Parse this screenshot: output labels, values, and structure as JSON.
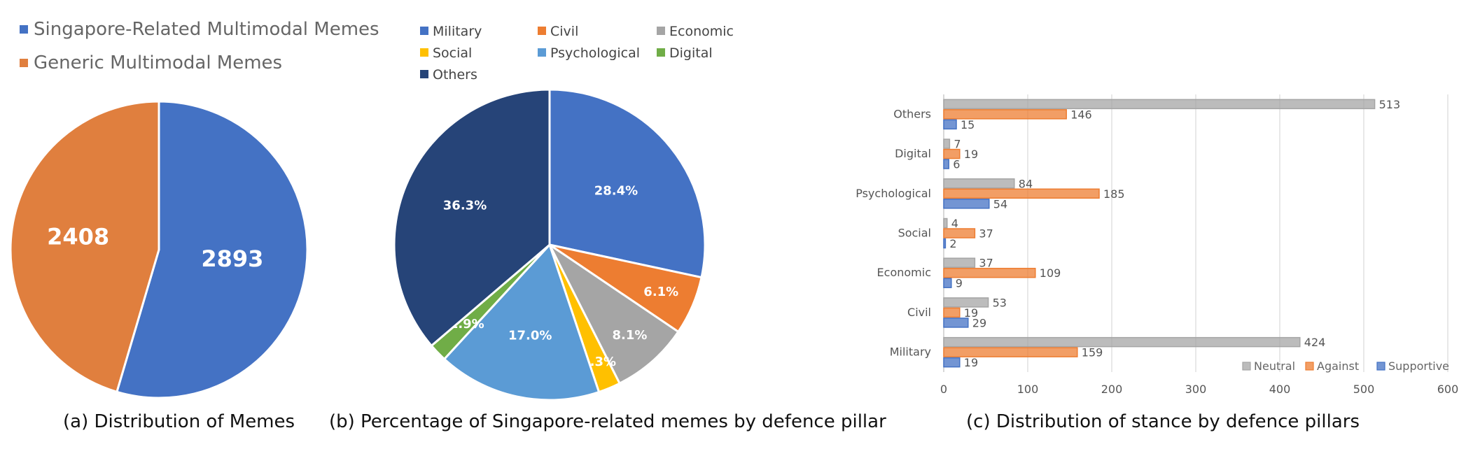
{
  "colors": {
    "blue": "#4472C4",
    "orange": "#ED7D31",
    "pie_orange": "#E07F3E",
    "gray": "#A5A5A5",
    "yellow": "#FFC000",
    "light_blue": "#5B9BD5",
    "green": "#70AD47",
    "navy": "#264478",
    "grid": "#D9D9D9"
  },
  "chart_data": [
    {
      "type": "pie",
      "title": "",
      "caption": "(a) Distribution of Memes",
      "legend_position": "top-left",
      "slices": [
        {
          "name": "Singapore-Related Multimodal Memes",
          "value": 2893,
          "label": "2893",
          "color": "#4472C4"
        },
        {
          "name": "Generic Multimodal Memes",
          "value": 2408,
          "label": "2408",
          "color": "#E07F3E"
        }
      ]
    },
    {
      "type": "pie",
      "title": "",
      "caption": "(b) Percentage of Singapore-related memes by defence pillar",
      "legend_position": "top",
      "slices": [
        {
          "name": "Military",
          "value": 28.4,
          "label": "28.4%",
          "color": "#4472C4"
        },
        {
          "name": "Civil",
          "value": 6.1,
          "label": "6.1%",
          "color": "#ED7D31"
        },
        {
          "name": "Economic",
          "value": 8.1,
          "label": "8.1%",
          "color": "#A5A5A5"
        },
        {
          "name": "Social",
          "value": 2.3,
          "label": "2.3%",
          "color": "#FFC000"
        },
        {
          "name": "Psychological",
          "value": 17.0,
          "label": "17.0%",
          "color": "#5B9BD5"
        },
        {
          "name": "Digital",
          "value": 1.9,
          "label": "1.9%",
          "color": "#70AD47"
        },
        {
          "name": "Others",
          "value": 36.3,
          "label": "36.3%",
          "color": "#264478"
        }
      ]
    },
    {
      "type": "bar",
      "orientation": "horizontal",
      "title": "",
      "caption": "(c) Distribution of stance by defence pillars",
      "categories": [
        "Military",
        "Civil",
        "Economic",
        "Social",
        "Psychological",
        "Digital",
        "Others"
      ],
      "series": [
        {
          "name": "Neutral",
          "values": [
            424,
            53,
            37,
            4,
            84,
            7,
            513
          ],
          "color": "#A5A5A5"
        },
        {
          "name": "Against",
          "values": [
            159,
            19,
            109,
            37,
            185,
            19,
            146
          ],
          "color": "#ED7D31"
        },
        {
          "name": "Supportive",
          "values": [
            19,
            29,
            9,
            2,
            54,
            6,
            15
          ],
          "color": "#4472C4"
        }
      ],
      "xlim": [
        0,
        600
      ],
      "xticks": [
        "0",
        "100",
        "200",
        "300",
        "400",
        "500",
        "600"
      ],
      "grid": true,
      "legend_position": "bottom-right"
    }
  ]
}
